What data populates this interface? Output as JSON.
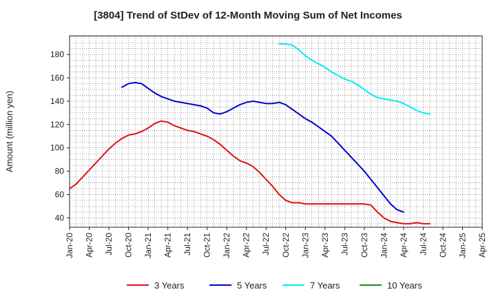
{
  "chart_data": {
    "type": "line",
    "title": "[3804]  Trend of StDev of 12-Month Moving Sum of Net Incomes",
    "xlabel": "",
    "ylabel": "Amount (million yen)",
    "ylim": [
      32,
      196
    ],
    "yticks": [
      40,
      60,
      80,
      100,
      120,
      140,
      160,
      180
    ],
    "xticks": [
      "Jan-20",
      "Apr-20",
      "Jul-20",
      "Oct-20",
      "Jan-21",
      "Apr-21",
      "Jul-21",
      "Oct-21",
      "Jan-22",
      "Apr-22",
      "Jul-22",
      "Oct-22",
      "Jan-23",
      "Apr-23",
      "Jul-23",
      "Oct-23",
      "Jan-24",
      "Apr-24",
      "Jul-24",
      "Oct-24",
      "Jan-25",
      "Apr-25"
    ],
    "x_start": "Jan-20",
    "grid": true,
    "legend_position": "bottom",
    "series": [
      {
        "name": "3 Years",
        "color": "#dd1111",
        "start": "Jan-20",
        "values": [
          65,
          69,
          75,
          81,
          87,
          93,
          99,
          104,
          108,
          111,
          112,
          114,
          117,
          121,
          123,
          122,
          119,
          117,
          115,
          114,
          112,
          110,
          107,
          103,
          98,
          93,
          89,
          87,
          84,
          79,
          73,
          67,
          60,
          55,
          53,
          53,
          52,
          52,
          52,
          52,
          52,
          52,
          52,
          52,
          52,
          52,
          51,
          45,
          40,
          37,
          36,
          35,
          35,
          36,
          35,
          35
        ]
      },
      {
        "name": "5 Years",
        "color": "#0000cc",
        "start": "Sep-20",
        "values": [
          152,
          155,
          156,
          155,
          151,
          147,
          144,
          142,
          140,
          139,
          138,
          137,
          136,
          134,
          130,
          129,
          131,
          134,
          137,
          139,
          140,
          139,
          138,
          138,
          139,
          137,
          133,
          129,
          125,
          122,
          118,
          114,
          110,
          104,
          98,
          92,
          86,
          80,
          73,
          66,
          59,
          52,
          47,
          45
        ]
      },
      {
        "name": "7 Years",
        "color": "#00eeee",
        "start": "Sep-22",
        "values": [
          189,
          189,
          188,
          184,
          179,
          175,
          172,
          169,
          165,
          162,
          159,
          157,
          154,
          150,
          146,
          143,
          142,
          141,
          140,
          138,
          135,
          132,
          130,
          129
        ]
      },
      {
        "name": "10 Years",
        "color": "#228822",
        "start": "Jan-20",
        "values": []
      }
    ]
  }
}
